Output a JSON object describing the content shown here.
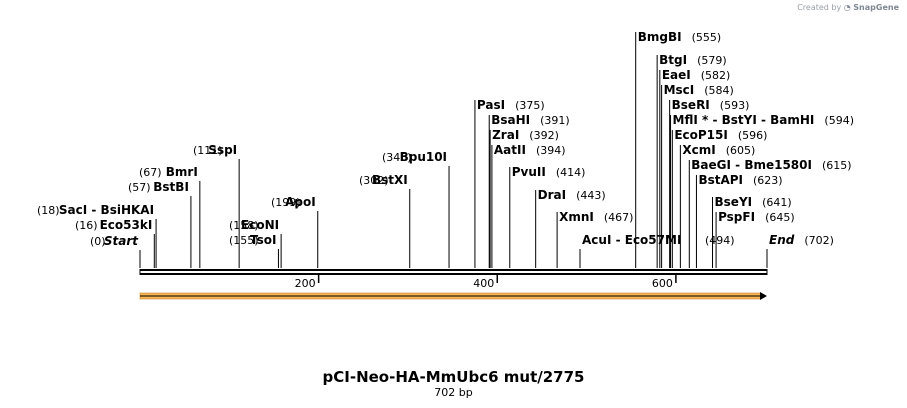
{
  "watermark": {
    "prefix": "Created by",
    "brand": "SnapGene"
  },
  "title": "pCI-Neo-HA-MmUbc6 mut/2775",
  "subtitle": "702 bp",
  "map": {
    "length": 702,
    "ticks": [
      200,
      400,
      600
    ],
    "colors": {
      "line": "#000000",
      "feature_fill": "#f6b553",
      "feature_stroke": "#c8842a",
      "arrow": "#000000"
    }
  },
  "sites": [
    {
      "id": "start",
      "pos": 0,
      "label": "Start",
      "italic": true
    },
    {
      "id": "eco53ki",
      "pos": 16,
      "label": "Eco53kI"
    },
    {
      "id": "saci-bsihkai",
      "pos": 18,
      "label": "SacI  -  BsiHKAI"
    },
    {
      "id": "bstbi",
      "pos": 57,
      "label": "BstBI"
    },
    {
      "id": "bmri",
      "pos": 67,
      "label": "BmrI"
    },
    {
      "id": "sspi",
      "pos": 111,
      "label": "SspI"
    },
    {
      "id": "tsoi",
      "pos": 155,
      "label": "TsoI"
    },
    {
      "id": "econi",
      "pos": 158,
      "label": "EcoNI"
    },
    {
      "id": "apoi",
      "pos": 199,
      "label": "ApoI"
    },
    {
      "id": "bstxi",
      "pos": 302,
      "label": "BstXI"
    },
    {
      "id": "bpu10i",
      "pos": 346,
      "label": "Bpu10I"
    },
    {
      "id": "pasi",
      "pos": 375,
      "label": "PasI"
    },
    {
      "id": "bsahi",
      "pos": 391,
      "label": "BsaHI"
    },
    {
      "id": "zrai",
      "pos": 392,
      "label": "ZraI"
    },
    {
      "id": "aatii",
      "pos": 394,
      "label": "AatII"
    },
    {
      "id": "pvuii",
      "pos": 414,
      "label": "PvuII"
    },
    {
      "id": "drai",
      "pos": 443,
      "label": "DraI"
    },
    {
      "id": "xmni",
      "pos": 467,
      "label": "XmnI"
    },
    {
      "id": "acui-eco57mi",
      "pos": 494,
      "label": "AcuI  -  Eco57MI"
    },
    {
      "id": "bmgbi",
      "pos": 555,
      "label": "BmgBI"
    },
    {
      "id": "btgi",
      "pos": 579,
      "label": "BtgI"
    },
    {
      "id": "eaei",
      "pos": 582,
      "label": "EaeI"
    },
    {
      "id": "msci",
      "pos": 584,
      "label": "MscI"
    },
    {
      "id": "bseri",
      "pos": 593,
      "label": "BseRI"
    },
    {
      "id": "mfli-bstyi-bamhi",
      "pos": 594,
      "label": "MflI *  -  BstYI  -  BamHI"
    },
    {
      "id": "ecop15i",
      "pos": 596,
      "label": "EcoP15I"
    },
    {
      "id": "xcmi",
      "pos": 605,
      "label": "XcmI"
    },
    {
      "id": "baegi-bme1580i",
      "pos": 615,
      "label": "BaeGI  -  Bme1580I"
    },
    {
      "id": "bstapi",
      "pos": 623,
      "label": "BstAPI"
    },
    {
      "id": "bseyi",
      "pos": 641,
      "label": "BseYI"
    },
    {
      "id": "pspfi",
      "pos": 645,
      "label": "PspFI"
    },
    {
      "id": "end",
      "pos": 702,
      "label": "End",
      "italic": true
    }
  ]
}
